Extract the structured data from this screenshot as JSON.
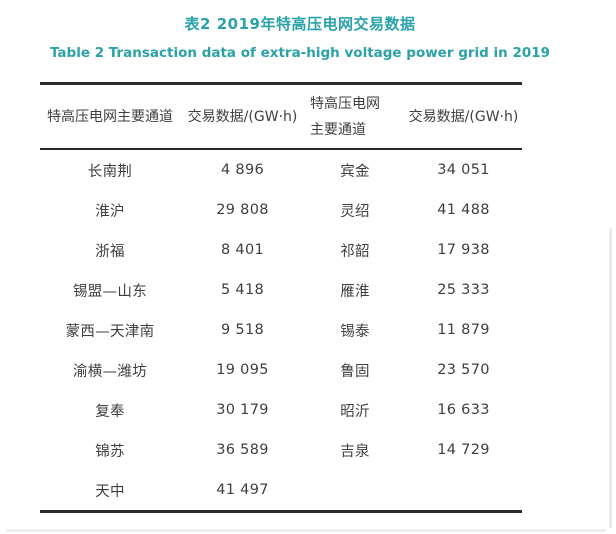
{
  "page": {
    "caption_zh": "表2 2019年特高压电网交易数据",
    "caption_en": "Table 2 Transaction data of extra-high voltage power grid in 2019",
    "accent_color": "#2aa2a8",
    "text_color": "#3f3f3f",
    "rule_color": "#2b2b2b"
  },
  "table": {
    "headers": [
      "特高压电网主要通道",
      "交易数据/(GW·h)",
      "特高压电网主要通道",
      "交易数据/(GW·h)"
    ],
    "rows": [
      [
        "长南荆",
        "4 896",
        "宾金",
        "34 051"
      ],
      [
        "淮沪",
        "29 808",
        "灵绍",
        "41 488"
      ],
      [
        "浙福",
        "8 401",
        "祁韶",
        "17 938"
      ],
      [
        "锡盟—山东",
        "5 418",
        "雁淮",
        "25 333"
      ],
      [
        "蒙西—天津南",
        "9 518",
        "锡泰",
        "11 879"
      ],
      [
        "渝横—潍坊",
        "19 095",
        "鲁固",
        "23 570"
      ],
      [
        "复奉",
        "30 179",
        "昭沂",
        "16 633"
      ],
      [
        "锦苏",
        "36 589",
        "吉泉",
        "14 729"
      ],
      [
        "天中",
        "41 497",
        "",
        ""
      ]
    ]
  }
}
